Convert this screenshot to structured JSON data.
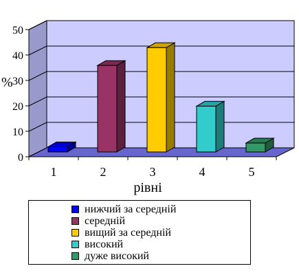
{
  "chart_data": {
    "type": "bar",
    "categories": [
      "1",
      "2",
      "3",
      "4",
      "5"
    ],
    "values": [
      2,
      34,
      41,
      18,
      3.5
    ],
    "colors": [
      "#0000ff",
      "#993366",
      "#ffcc00",
      "#33cccc",
      "#339966"
    ],
    "xlabel": "рівні",
    "ylabel": "%",
    "ylim": [
      0,
      50
    ],
    "yticks": [
      "0",
      "10",
      "20",
      "30",
      "40",
      "50"
    ],
    "grid": true,
    "plot_background": "#ccccff",
    "floor_color": "#6666cc",
    "legend_position": "bottom",
    "legend": [
      {
        "label": "нижчий за середній",
        "color": "#0000ff"
      },
      {
        "label": "середній",
        "color": "#993366"
      },
      {
        "label": "вищий за середній",
        "color": "#ffcc00"
      },
      {
        "label": "високий",
        "color": "#33cccc"
      },
      {
        "label": "дуже високий",
        "color": "#339966"
      }
    ]
  }
}
